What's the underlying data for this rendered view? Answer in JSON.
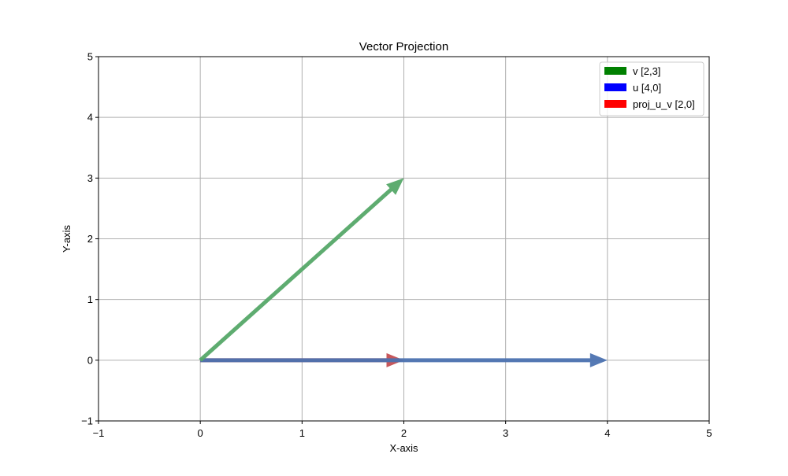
{
  "chart_data": {
    "type": "quiver",
    "title": "Vector Projection",
    "xlabel": "X-axis",
    "ylabel": "Y-axis",
    "xlim": [
      -1,
      5
    ],
    "ylim": [
      -1,
      5
    ],
    "xticks": [
      -1,
      0,
      1,
      2,
      3,
      4,
      5
    ],
    "yticks": [
      -1,
      0,
      1,
      2,
      3,
      4,
      5
    ],
    "xtick_labels": [
      "−1",
      "0",
      "1",
      "2",
      "3",
      "4",
      "5"
    ],
    "ytick_labels": [
      "−1",
      "0",
      "1",
      "2",
      "3",
      "4",
      "5"
    ],
    "grid": true,
    "legend_position": "top-right",
    "series": [
      {
        "name": "v [2,3]",
        "origin": [
          0,
          0
        ],
        "vector": [
          2,
          3
        ],
        "color": "#55a868",
        "legend_color": "#008000"
      },
      {
        "name": "u [4,0]",
        "origin": [
          0,
          0
        ],
        "vector": [
          4,
          0
        ],
        "color": "#4c72b0",
        "legend_color": "#0000ff"
      },
      {
        "name": "proj_u_v [2,0]",
        "origin": [
          0,
          0
        ],
        "vector": [
          2,
          0
        ],
        "color": "#c44e52",
        "legend_color": "#ff0000"
      }
    ]
  }
}
